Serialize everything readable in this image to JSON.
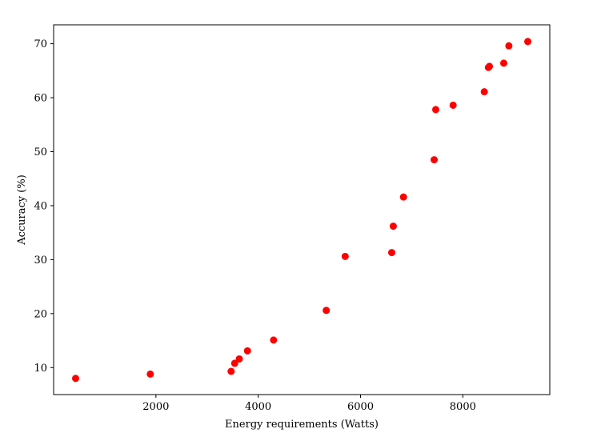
{
  "chart_data": {
    "type": "scatter",
    "title": "",
    "xlabel": "Energy requirements (Watts)",
    "ylabel": "Accuracy (%)",
    "xlim": [
      0,
      9700
    ],
    "ylim": [
      5,
      73.5
    ],
    "xticks": [
      2000,
      4000,
      6000,
      8000
    ],
    "yticks": [
      10,
      20,
      30,
      40,
      50,
      60,
      70
    ],
    "grid": false,
    "marker_color": "#ff0000",
    "series": [
      {
        "x": [
          430,
          1890,
          3470,
          3540,
          3630,
          3790,
          4300,
          5330,
          5700,
          6610,
          6640,
          6840,
          7440,
          7470,
          7810,
          8420,
          8500,
          8520,
          8800,
          8900,
          9270
        ],
        "y": [
          8.0,
          8.8,
          9.3,
          10.8,
          11.6,
          13.1,
          15.1,
          20.6,
          30.6,
          31.3,
          36.2,
          41.6,
          48.5,
          57.8,
          58.6,
          61.1,
          65.6,
          65.8,
          66.4,
          69.6,
          70.4
        ]
      }
    ]
  }
}
